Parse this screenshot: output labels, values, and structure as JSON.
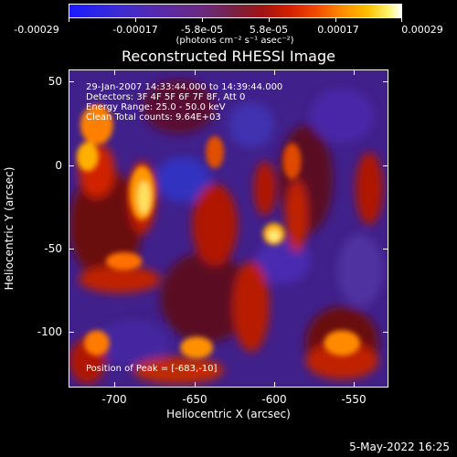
{
  "colorbar": {
    "tick_labels": [
      "-0.00029",
      "-0.00017",
      "-5.8e-05",
      "5.8e-05",
      "0.00017",
      "0.00029"
    ],
    "unit_label": "(photons cm⁻² s⁻¹ asec⁻²)"
  },
  "plot": {
    "title": "Reconstructed RHESSI Image",
    "info_lines": [
      "29-Jan-2007 14:33:44.000 to 14:39:44.000",
      "Detectors: 3F 4F 5F 6F 7F 8F, Att 0",
      "Energy Range: 25.0 - 50.0 keV",
      "Clean     Total counts: 9.64E+03"
    ],
    "peak_label": "Position of Peak = [-683,-10]",
    "x_axis": {
      "title": "Heliocentric X (arcsec)",
      "ticks": [
        "-700",
        "-650",
        "-600",
        "-550"
      ]
    },
    "y_axis": {
      "title": "Heliocentric Y (arcsec)",
      "ticks": [
        "50",
        "0",
        "-50",
        "-100"
      ]
    }
  },
  "footer": {
    "date": "5-May-2022 16:25"
  }
}
